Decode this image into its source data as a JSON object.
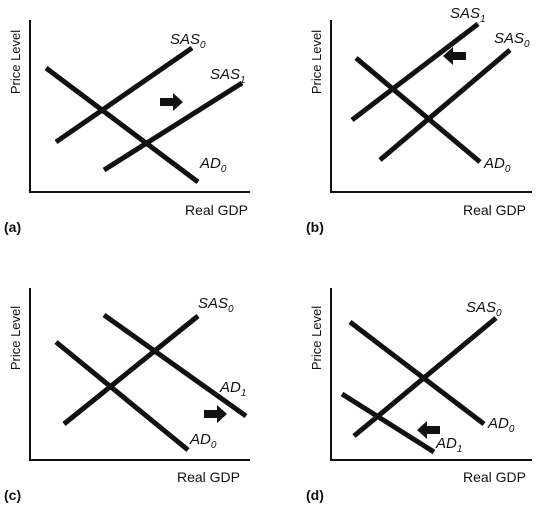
{
  "panels": [
    {
      "id": "a",
      "panel_label": "(a)",
      "y_axis_label": "Price Level",
      "x_axis_label": "Real GDP",
      "curve_labels": [
        {
          "base": "SAS",
          "sub": "0"
        },
        {
          "base": "SAS",
          "sub": "1"
        },
        {
          "base": "AD",
          "sub": "0"
        }
      ],
      "arrow": "right"
    },
    {
      "id": "b",
      "panel_label": "(b)",
      "y_axis_label": "Price Level",
      "x_axis_label": "Real GDP",
      "curve_labels": [
        {
          "base": "SAS",
          "sub": "1"
        },
        {
          "base": "SAS",
          "sub": "0"
        },
        {
          "base": "AD",
          "sub": "0"
        }
      ],
      "arrow": "left"
    },
    {
      "id": "c",
      "panel_label": "(c)",
      "y_axis_label": "Price Level",
      "x_axis_label": "Real GDP",
      "curve_labels": [
        {
          "base": "SAS",
          "sub": "0"
        },
        {
          "base": "AD",
          "sub": "1"
        },
        {
          "base": "AD",
          "sub": "0"
        }
      ],
      "arrow": "right"
    },
    {
      "id": "d",
      "panel_label": "(d)",
      "y_axis_label": "Price Level",
      "x_axis_label": "Real GDP",
      "curve_labels": [
        {
          "base": "SAS",
          "sub": "0"
        },
        {
          "base": "AD",
          "sub": "0"
        },
        {
          "base": "AD",
          "sub": "1"
        }
      ],
      "arrow": "left"
    }
  ],
  "colors": {
    "ink": "#111111",
    "background": "#ffffff"
  }
}
